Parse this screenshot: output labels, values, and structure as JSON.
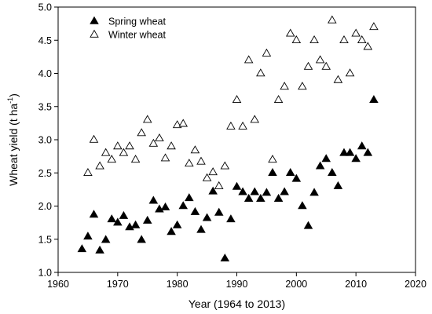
{
  "chart_data": {
    "type": "scatter",
    "xlabel": "Year (1964 to 2013)",
    "ylabel_main": "Wheat yield (t ha",
    "ylabel_sup": "-1",
    "ylabel_close": ")",
    "xlim": [
      1960,
      2020
    ],
    "ylim": [
      1.0,
      5.0
    ],
    "xticks": [
      "1960",
      "1970",
      "1980",
      "1990",
      "2000",
      "2010",
      "2020"
    ],
    "yticks": [
      "1.0",
      "1.5",
      "2.0",
      "2.5",
      "3.0",
      "3.5",
      "4.0",
      "4.5",
      "5.0"
    ],
    "grid": false,
    "legend_position": "top-left",
    "series": [
      {
        "name": "Spring wheat",
        "marker": "filled-triangle",
        "color": "#000000",
        "points": [
          [
            1964,
            1.35
          ],
          [
            1965,
            1.54
          ],
          [
            1966,
            1.87
          ],
          [
            1967,
            1.33
          ],
          [
            1968,
            1.49
          ],
          [
            1969,
            1.8
          ],
          [
            1970,
            1.75
          ],
          [
            1971,
            1.85
          ],
          [
            1972,
            1.68
          ],
          [
            1973,
            1.71
          ],
          [
            1974,
            1.49
          ],
          [
            1975,
            1.78
          ],
          [
            1976,
            2.08
          ],
          [
            1977,
            1.95
          ],
          [
            1978,
            1.98
          ],
          [
            1979,
            1.61
          ],
          [
            1980,
            1.71
          ],
          [
            1981,
            2.0
          ],
          [
            1982,
            2.12
          ],
          [
            1983,
            1.91
          ],
          [
            1984,
            1.64
          ],
          [
            1985,
            1.82
          ],
          [
            1986,
            2.22
          ],
          [
            1987,
            1.9
          ],
          [
            1988,
            1.21
          ],
          [
            1989,
            1.8
          ],
          [
            1990,
            2.29
          ],
          [
            1991,
            2.21
          ],
          [
            1992,
            2.11
          ],
          [
            1993,
            2.21
          ],
          [
            1994,
            2.11
          ],
          [
            1995,
            2.2
          ],
          [
            1996,
            2.5
          ],
          [
            1997,
            2.11
          ],
          [
            1998,
            2.21
          ],
          [
            1999,
            2.5
          ],
          [
            2000,
            2.41
          ],
          [
            2001,
            2.0
          ],
          [
            2002,
            1.7
          ],
          [
            2003,
            2.2
          ],
          [
            2004,
            2.6
          ],
          [
            2005,
            2.71
          ],
          [
            2006,
            2.5
          ],
          [
            2007,
            2.3
          ],
          [
            2008,
            2.8
          ],
          [
            2009,
            2.8
          ],
          [
            2010,
            2.71
          ],
          [
            2011,
            2.9
          ],
          [
            2012,
            2.8
          ],
          [
            2013,
            3.6
          ]
        ]
      },
      {
        "name": "Winter wheat",
        "marker": "open-triangle",
        "color": "#000000",
        "points": [
          [
            1965,
            2.5
          ],
          [
            1966,
            3.0
          ],
          [
            1967,
            2.6
          ],
          [
            1968,
            2.8
          ],
          [
            1969,
            2.7
          ],
          [
            1970,
            2.9
          ],
          [
            1971,
            2.8
          ],
          [
            1972,
            2.9
          ],
          [
            1973,
            2.7
          ],
          [
            1974,
            3.1
          ],
          [
            1975,
            3.3
          ],
          [
            1976,
            2.94
          ],
          [
            1977,
            3.02
          ],
          [
            1978,
            2.72
          ],
          [
            1979,
            2.9
          ],
          [
            1980,
            3.22
          ],
          [
            1981,
            3.24
          ],
          [
            1982,
            2.64
          ],
          [
            1983,
            2.84
          ],
          [
            1984,
            2.67
          ],
          [
            1985,
            2.42
          ],
          [
            1986,
            2.51
          ],
          [
            1987,
            2.3
          ],
          [
            1988,
            2.6
          ],
          [
            1989,
            3.2
          ],
          [
            1990,
            3.6
          ],
          [
            1991,
            3.2
          ],
          [
            1992,
            4.2
          ],
          [
            1993,
            3.3
          ],
          [
            1994,
            4.0
          ],
          [
            1995,
            4.3
          ],
          [
            1996,
            2.7
          ],
          [
            1997,
            3.6
          ],
          [
            1998,
            3.8
          ],
          [
            1999,
            4.6
          ],
          [
            2000,
            4.5
          ],
          [
            2001,
            3.8
          ],
          [
            2002,
            4.1
          ],
          [
            2003,
            4.5
          ],
          [
            2004,
            4.2
          ],
          [
            2005,
            4.1
          ],
          [
            2006,
            4.8
          ],
          [
            2007,
            3.9
          ],
          [
            2008,
            4.5
          ],
          [
            2009,
            4.0
          ],
          [
            2010,
            4.6
          ],
          [
            2011,
            4.5
          ],
          [
            2012,
            4.4
          ],
          [
            2013,
            4.7
          ]
        ]
      }
    ]
  }
}
